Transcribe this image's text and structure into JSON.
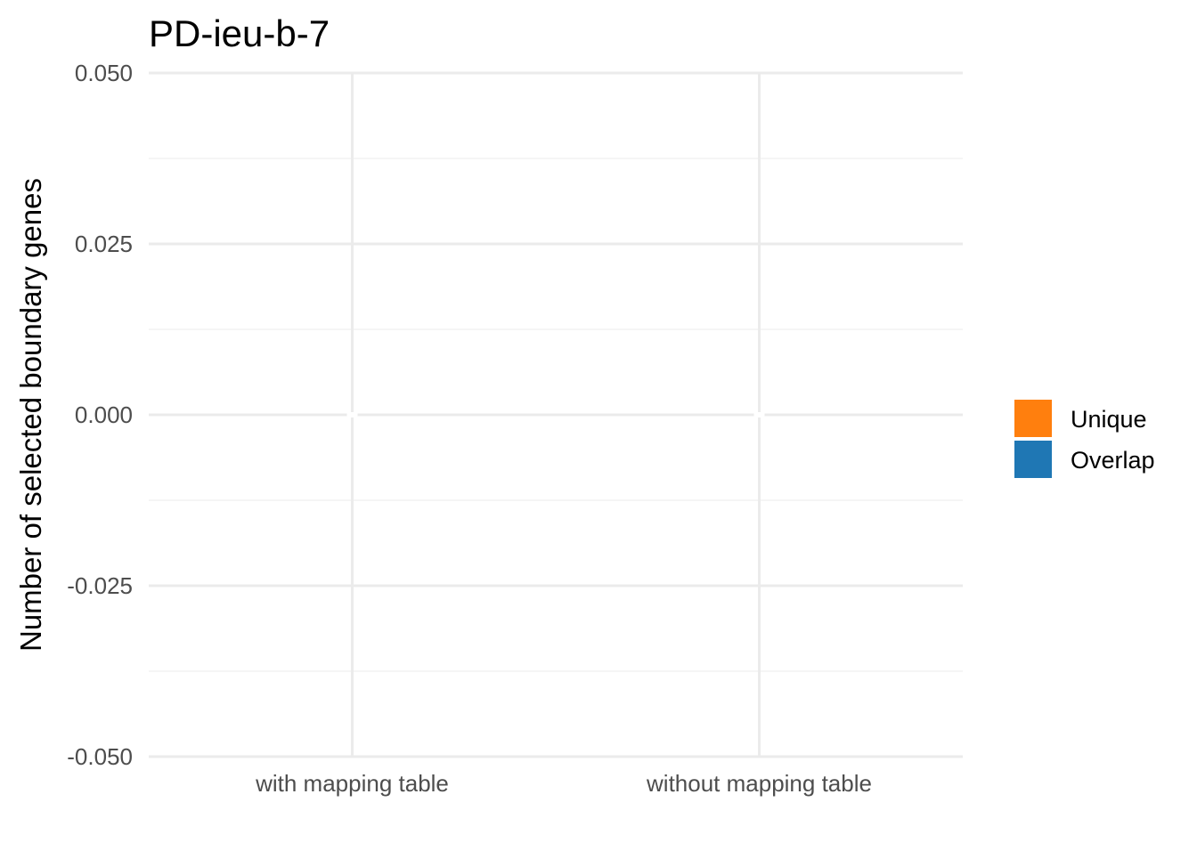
{
  "chart_data": {
    "type": "bar",
    "title": "PD-ieu-b-7",
    "xlabel": "",
    "ylabel": "Number of selected boundary genes",
    "categories": [
      "with mapping table",
      "without mapping table"
    ],
    "series": [
      {
        "name": "Unique",
        "color": "#FF7F0E",
        "values": [
          0,
          0
        ]
      },
      {
        "name": "Overlap",
        "color": "#1F77B4",
        "values": [
          0,
          0
        ]
      }
    ],
    "stacked": true,
    "ylim": [
      -0.05,
      0.05
    ],
    "yticks": [
      -0.05,
      -0.025,
      0,
      0.025,
      0.05
    ],
    "ytick_labels": [
      "-0.050",
      "-0.025",
      "0.000",
      "0.025",
      "0.050"
    ],
    "grid": true,
    "legend_position": "right",
    "colors": {
      "grid_major": "#EBEBEB",
      "grid_minor": "#F2F2F2",
      "tick_text": "#4D4D4D",
      "text": "#000000",
      "background": "#FFFFFF"
    }
  }
}
